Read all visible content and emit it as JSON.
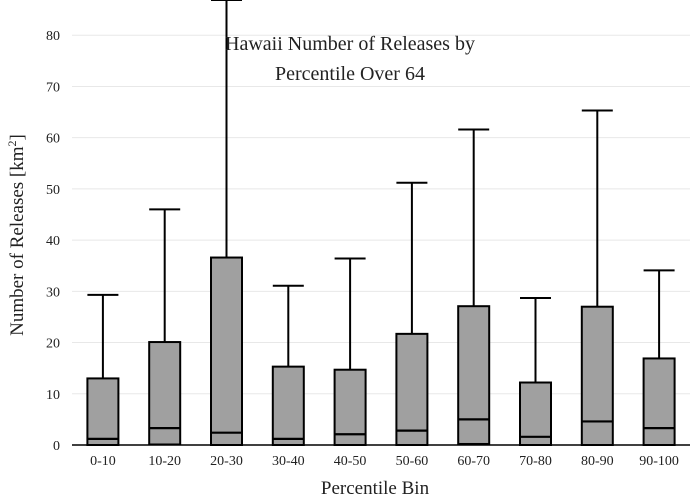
{
  "chart_data": {
    "type": "box",
    "title_lines": [
      "Hawaii Number of Releases by",
      "Percentile Over 64"
    ],
    "xlabel": "Percentile Bin",
    "ylabel_main": "Number of Releases  [km",
    "ylabel_sup": "2",
    "ylabel_end": "]",
    "ylim": [
      0,
      82
    ],
    "yticks": [
      0,
      10,
      20,
      30,
      40,
      50,
      60,
      70,
      80
    ],
    "grid": true,
    "box_color": "#a0a0a0",
    "line_color": "#000000",
    "categories": [
      "0-10",
      "10-20",
      "20-30",
      "30-40",
      "40-50",
      "50-60",
      "60-70",
      "70-80",
      "80-90",
      "90-100"
    ],
    "boxes": [
      {
        "low": 0,
        "q1": 0,
        "median": 1.2,
        "q3": 13,
        "high": 29.3
      },
      {
        "low": 0,
        "q1": 0.1,
        "median": 3.3,
        "q3": 20.1,
        "high": 46
      },
      {
        "low": 0,
        "q1": 0,
        "median": 2.4,
        "q3": 36.6,
        "high": 88
      },
      {
        "low": 0,
        "q1": 0,
        "median": 1.2,
        "q3": 15.3,
        "high": 31.1
      },
      {
        "low": 0,
        "q1": 0,
        "median": 2.1,
        "q3": 14.7,
        "high": 36.4
      },
      {
        "low": 0,
        "q1": 0,
        "median": 2.8,
        "q3": 21.7,
        "high": 51.2
      },
      {
        "low": 0,
        "q1": 0.2,
        "median": 5,
        "q3": 27.1,
        "high": 61.6
      },
      {
        "low": 0,
        "q1": 0,
        "median": 1.6,
        "q3": 12.2,
        "high": 28.7
      },
      {
        "low": 0,
        "q1": 0,
        "median": 4.6,
        "q3": 27,
        "high": 65.3
      },
      {
        "low": 0,
        "q1": 0,
        "median": 3.3,
        "q3": 16.9,
        "high": 34.1
      }
    ]
  }
}
